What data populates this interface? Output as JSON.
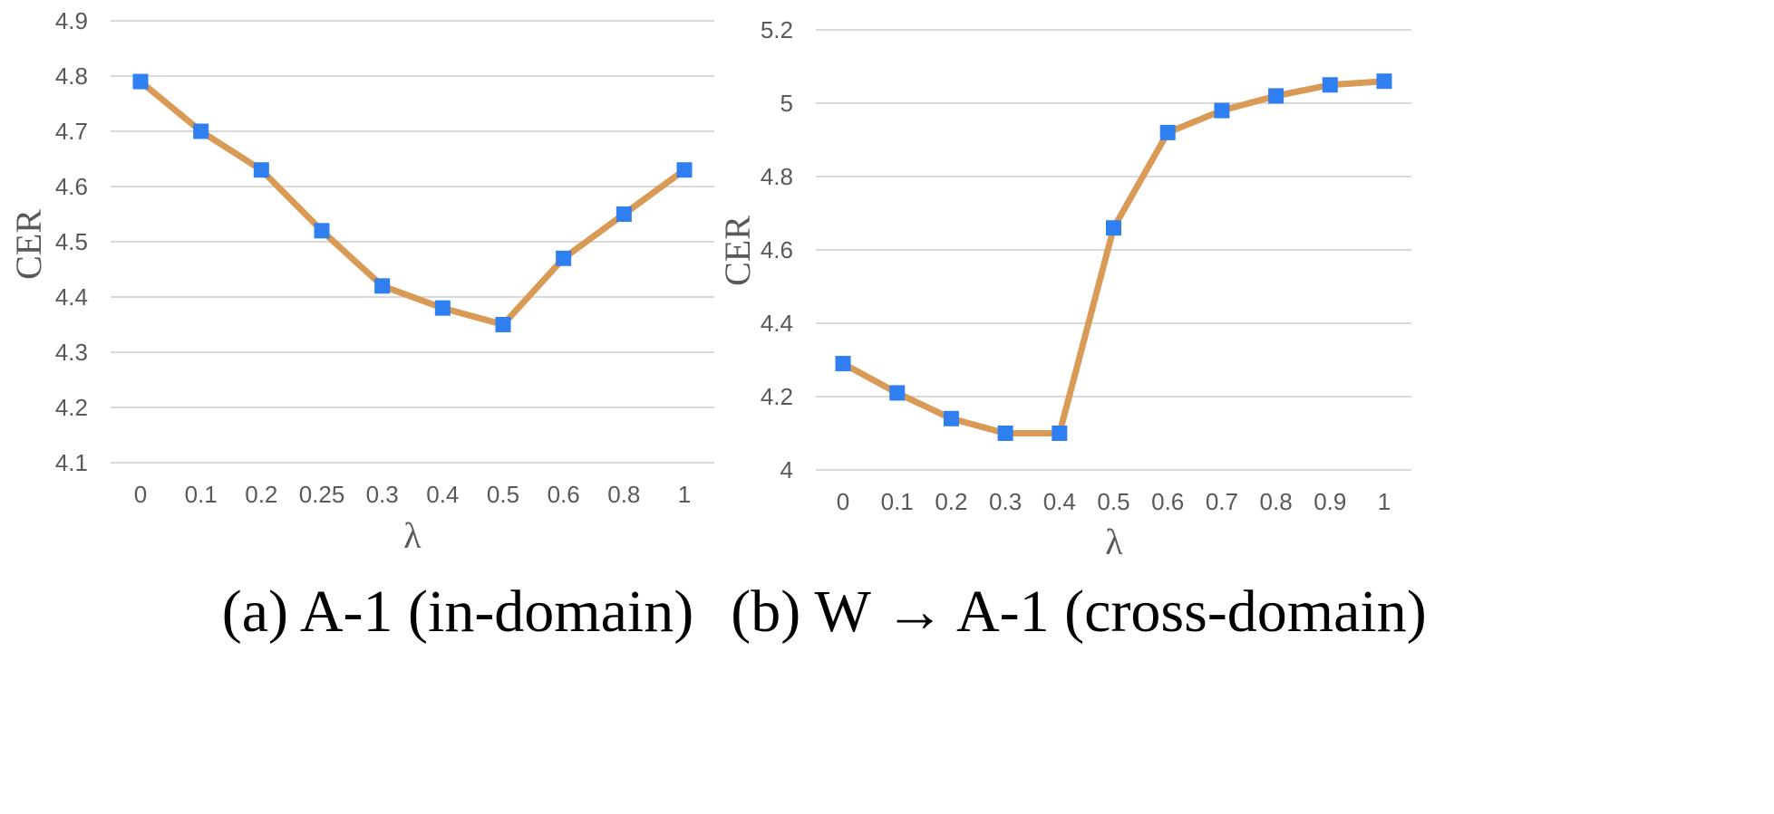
{
  "chart_data": [
    {
      "type": "line",
      "caption": "(a) A-1 (in-domain)",
      "xlabel": "λ",
      "ylabel": "CER",
      "categories": [
        "0",
        "0.1",
        "0.2",
        "0.25",
        "0.3",
        "0.4",
        "0.5",
        "0.6",
        "0.8",
        "1"
      ],
      "y_ticks": [
        "4.1",
        "4.2",
        "4.3",
        "4.4",
        "4.5",
        "4.6",
        "4.7",
        "4.8",
        "4.9"
      ],
      "ylim": [
        4.1,
        4.9
      ],
      "grid": true,
      "legend": "none",
      "series": [
        {
          "values": [
            4.79,
            4.7,
            4.63,
            4.52,
            4.42,
            4.38,
            4.35,
            4.47,
            4.55,
            4.63
          ]
        }
      ]
    },
    {
      "type": "line",
      "caption": "(b) W → A-1 (cross-domain)",
      "xlabel": "λ",
      "ylabel": "CER",
      "categories": [
        "0",
        "0.1",
        "0.2",
        "0.3",
        "0.4",
        "0.5",
        "0.6",
        "0.7",
        "0.8",
        "0.9",
        "1"
      ],
      "y_ticks": [
        "4",
        "4.2",
        "4.4",
        "4.6",
        "4.8",
        "5",
        "5.2"
      ],
      "ylim": [
        4.0,
        5.2
      ],
      "grid": true,
      "legend": "none",
      "series": [
        {
          "values": [
            4.29,
            4.21,
            4.14,
            4.1,
            4.1,
            4.66,
            4.92,
            4.98,
            5.02,
            5.05,
            5.06
          ]
        }
      ]
    }
  ],
  "style": {
    "line_color": "#d99a55",
    "marker_color": "#2f7ff0",
    "grid_color": "#d9d9d9",
    "tick_color": "#595959"
  }
}
